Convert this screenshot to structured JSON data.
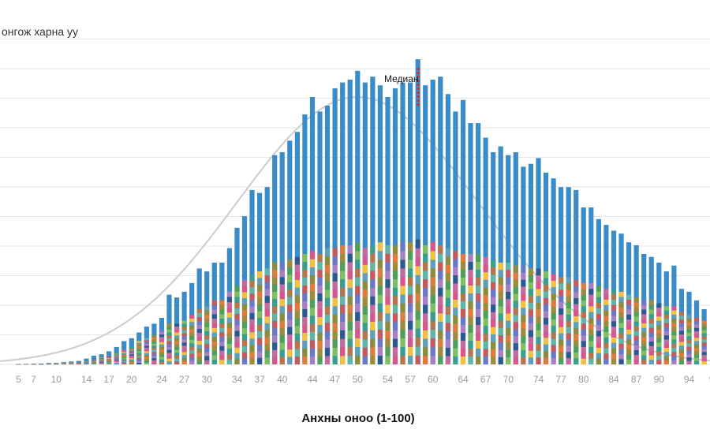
{
  "chart_data": {
    "type": "bar",
    "stacked": true,
    "legend_label": "онгож харна уу",
    "xlabel": "Анхны оноо (1-100)",
    "ylabel": "",
    "median_label": "Медиан",
    "median_x": 58,
    "x_tick_labels": [
      "5",
      "7",
      "10",
      "14",
      "17",
      "20",
      "24",
      "27",
      "30",
      "34",
      "37",
      "40",
      "44",
      "47",
      "50",
      "54",
      "57",
      "60",
      "64",
      "67",
      "70",
      "74",
      "77",
      "80",
      "84",
      "87",
      "90",
      "94",
      "9"
    ],
    "grid": true,
    "bell_curve": {
      "mean": 50,
      "sd": 16,
      "peak": 92,
      "color": "#cccccc"
    },
    "colors": {
      "main": "#3a8cc8",
      "segments": [
        "#2b5a8c",
        "#f2c13d",
        "#e07b39",
        "#7fbf5f",
        "#5fb6a6",
        "#a87fbf",
        "#d9558a",
        "#8c8c3a",
        "#4f9e5a",
        "#b8744a",
        "#6a78c6",
        "#c46a9e",
        "#5fa0b8",
        "#9e8c3a",
        "#3a9e8c",
        "#c65a5a"
      ],
      "grid": "#e6e6e6",
      "median": "#d62b2b"
    },
    "x": [
      5,
      6,
      7,
      8,
      9,
      10,
      11,
      12,
      13,
      14,
      15,
      16,
      17,
      18,
      19,
      20,
      21,
      22,
      23,
      24,
      25,
      26,
      27,
      28,
      29,
      30,
      31,
      32,
      33,
      34,
      35,
      36,
      37,
      38,
      39,
      40,
      41,
      42,
      43,
      44,
      45,
      46,
      47,
      48,
      49,
      50,
      51,
      52,
      53,
      54,
      55,
      56,
      57,
      58,
      59,
      60,
      61,
      62,
      63,
      64,
      65,
      66,
      67,
      68,
      69,
      70,
      71,
      72,
      73,
      74,
      75,
      76,
      77,
      78,
      79,
      80,
      81,
      82,
      83,
      84,
      85,
      86,
      87,
      88,
      89,
      90,
      91,
      92,
      93,
      94,
      95,
      96
    ],
    "values": [
      0.2,
      0.2,
      0.3,
      0.3,
      0.5,
      0.5,
      0.8,
      1,
      1.2,
      2,
      3,
      3.5,
      4.5,
      6,
      8,
      9,
      11,
      13,
      14,
      16,
      24,
      23,
      25,
      28,
      33,
      32,
      35,
      35,
      40,
      47,
      51,
      60,
      59,
      61,
      72,
      73,
      77,
      80,
      86,
      92,
      87,
      89,
      95,
      97,
      98,
      101,
      97,
      99,
      96,
      92,
      95,
      97,
      97,
      105,
      96,
      98,
      99,
      93,
      87,
      91,
      83,
      83,
      78,
      73,
      75,
      72,
      73,
      68,
      69,
      71,
      66,
      64,
      61,
      61,
      60,
      54,
      54,
      50,
      48,
      46,
      45,
      42,
      41,
      38,
      37,
      35,
      32,
      34,
      26,
      25,
      22,
      19
    ],
    "stack_values": [
      0.1,
      0.1,
      0.2,
      0.2,
      0.3,
      0.3,
      0.5,
      0.6,
      0.8,
      1.2,
      2,
      2.5,
      3,
      4,
      5,
      6,
      8,
      9,
      10,
      12,
      14,
      14,
      15,
      17,
      19,
      20,
      22,
      22,
      25,
      27,
      29,
      31,
      32,
      33,
      35,
      35,
      36,
      37,
      38,
      39,
      38,
      40,
      40,
      41,
      41,
      42,
      40,
      41,
      42,
      41,
      41,
      42,
      42,
      43,
      41,
      42,
      41,
      40,
      39,
      38,
      38,
      38,
      37,
      36,
      35,
      35,
      34,
      34,
      33,
      33,
      32,
      31,
      30,
      30,
      29,
      28,
      28,
      27,
      26,
      26,
      25,
      24,
      23,
      22,
      22,
      21,
      20,
      20,
      18,
      17,
      16,
      15
    ]
  }
}
